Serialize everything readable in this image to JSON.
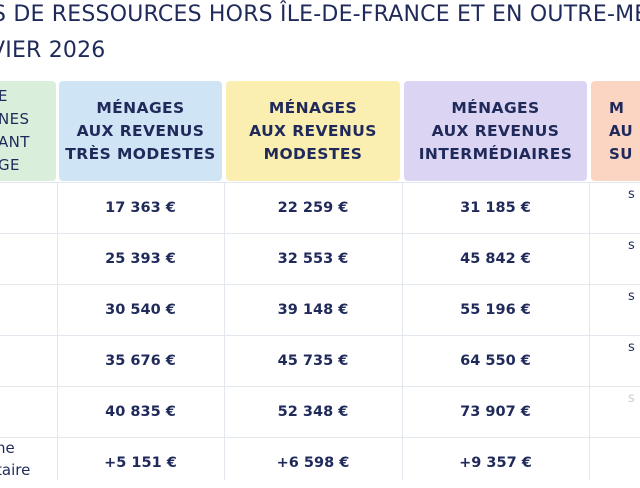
{
  "title": {
    "line1": "S DE RESSOURCES HORS ÎLE-DE-FRANCE ET EN OUTRE-ME",
    "line2": "VIER 2026"
  },
  "table": {
    "headers": [
      "E\nNES\nANT\nGE",
      "MÉNAGES\nAUX REVENUS\nTRÈS MODESTES",
      "MÉNAGES\nAUX REVENUS\nMODESTES",
      "MÉNAGES\nAUX REVENUS\nINTERMÉDIAIRES",
      "M\nAU\nSU"
    ],
    "rows": [
      {
        "label": "",
        "values": [
          "17 363 €",
          "22 259 €",
          "31 185 €",
          "s"
        ]
      },
      {
        "label": "",
        "values": [
          "25 393 €",
          "32 553 €",
          "45 842 €",
          "s"
        ]
      },
      {
        "label": "",
        "values": [
          "30 540 €",
          "39 148 €",
          "55 196 €",
          "s"
        ]
      },
      {
        "label": "",
        "values": [
          "35 676 €",
          "45 735 €",
          "64 550 €",
          "s"
        ]
      },
      {
        "label": "",
        "values": [
          "40 835 €",
          "52 348 €",
          "73 907 €",
          "s"
        ]
      },
      {
        "label": "ne\ntaire",
        "values": [
          "+5 151 €",
          "+6 598 €",
          "+9 357 €",
          ""
        ]
      }
    ]
  }
}
